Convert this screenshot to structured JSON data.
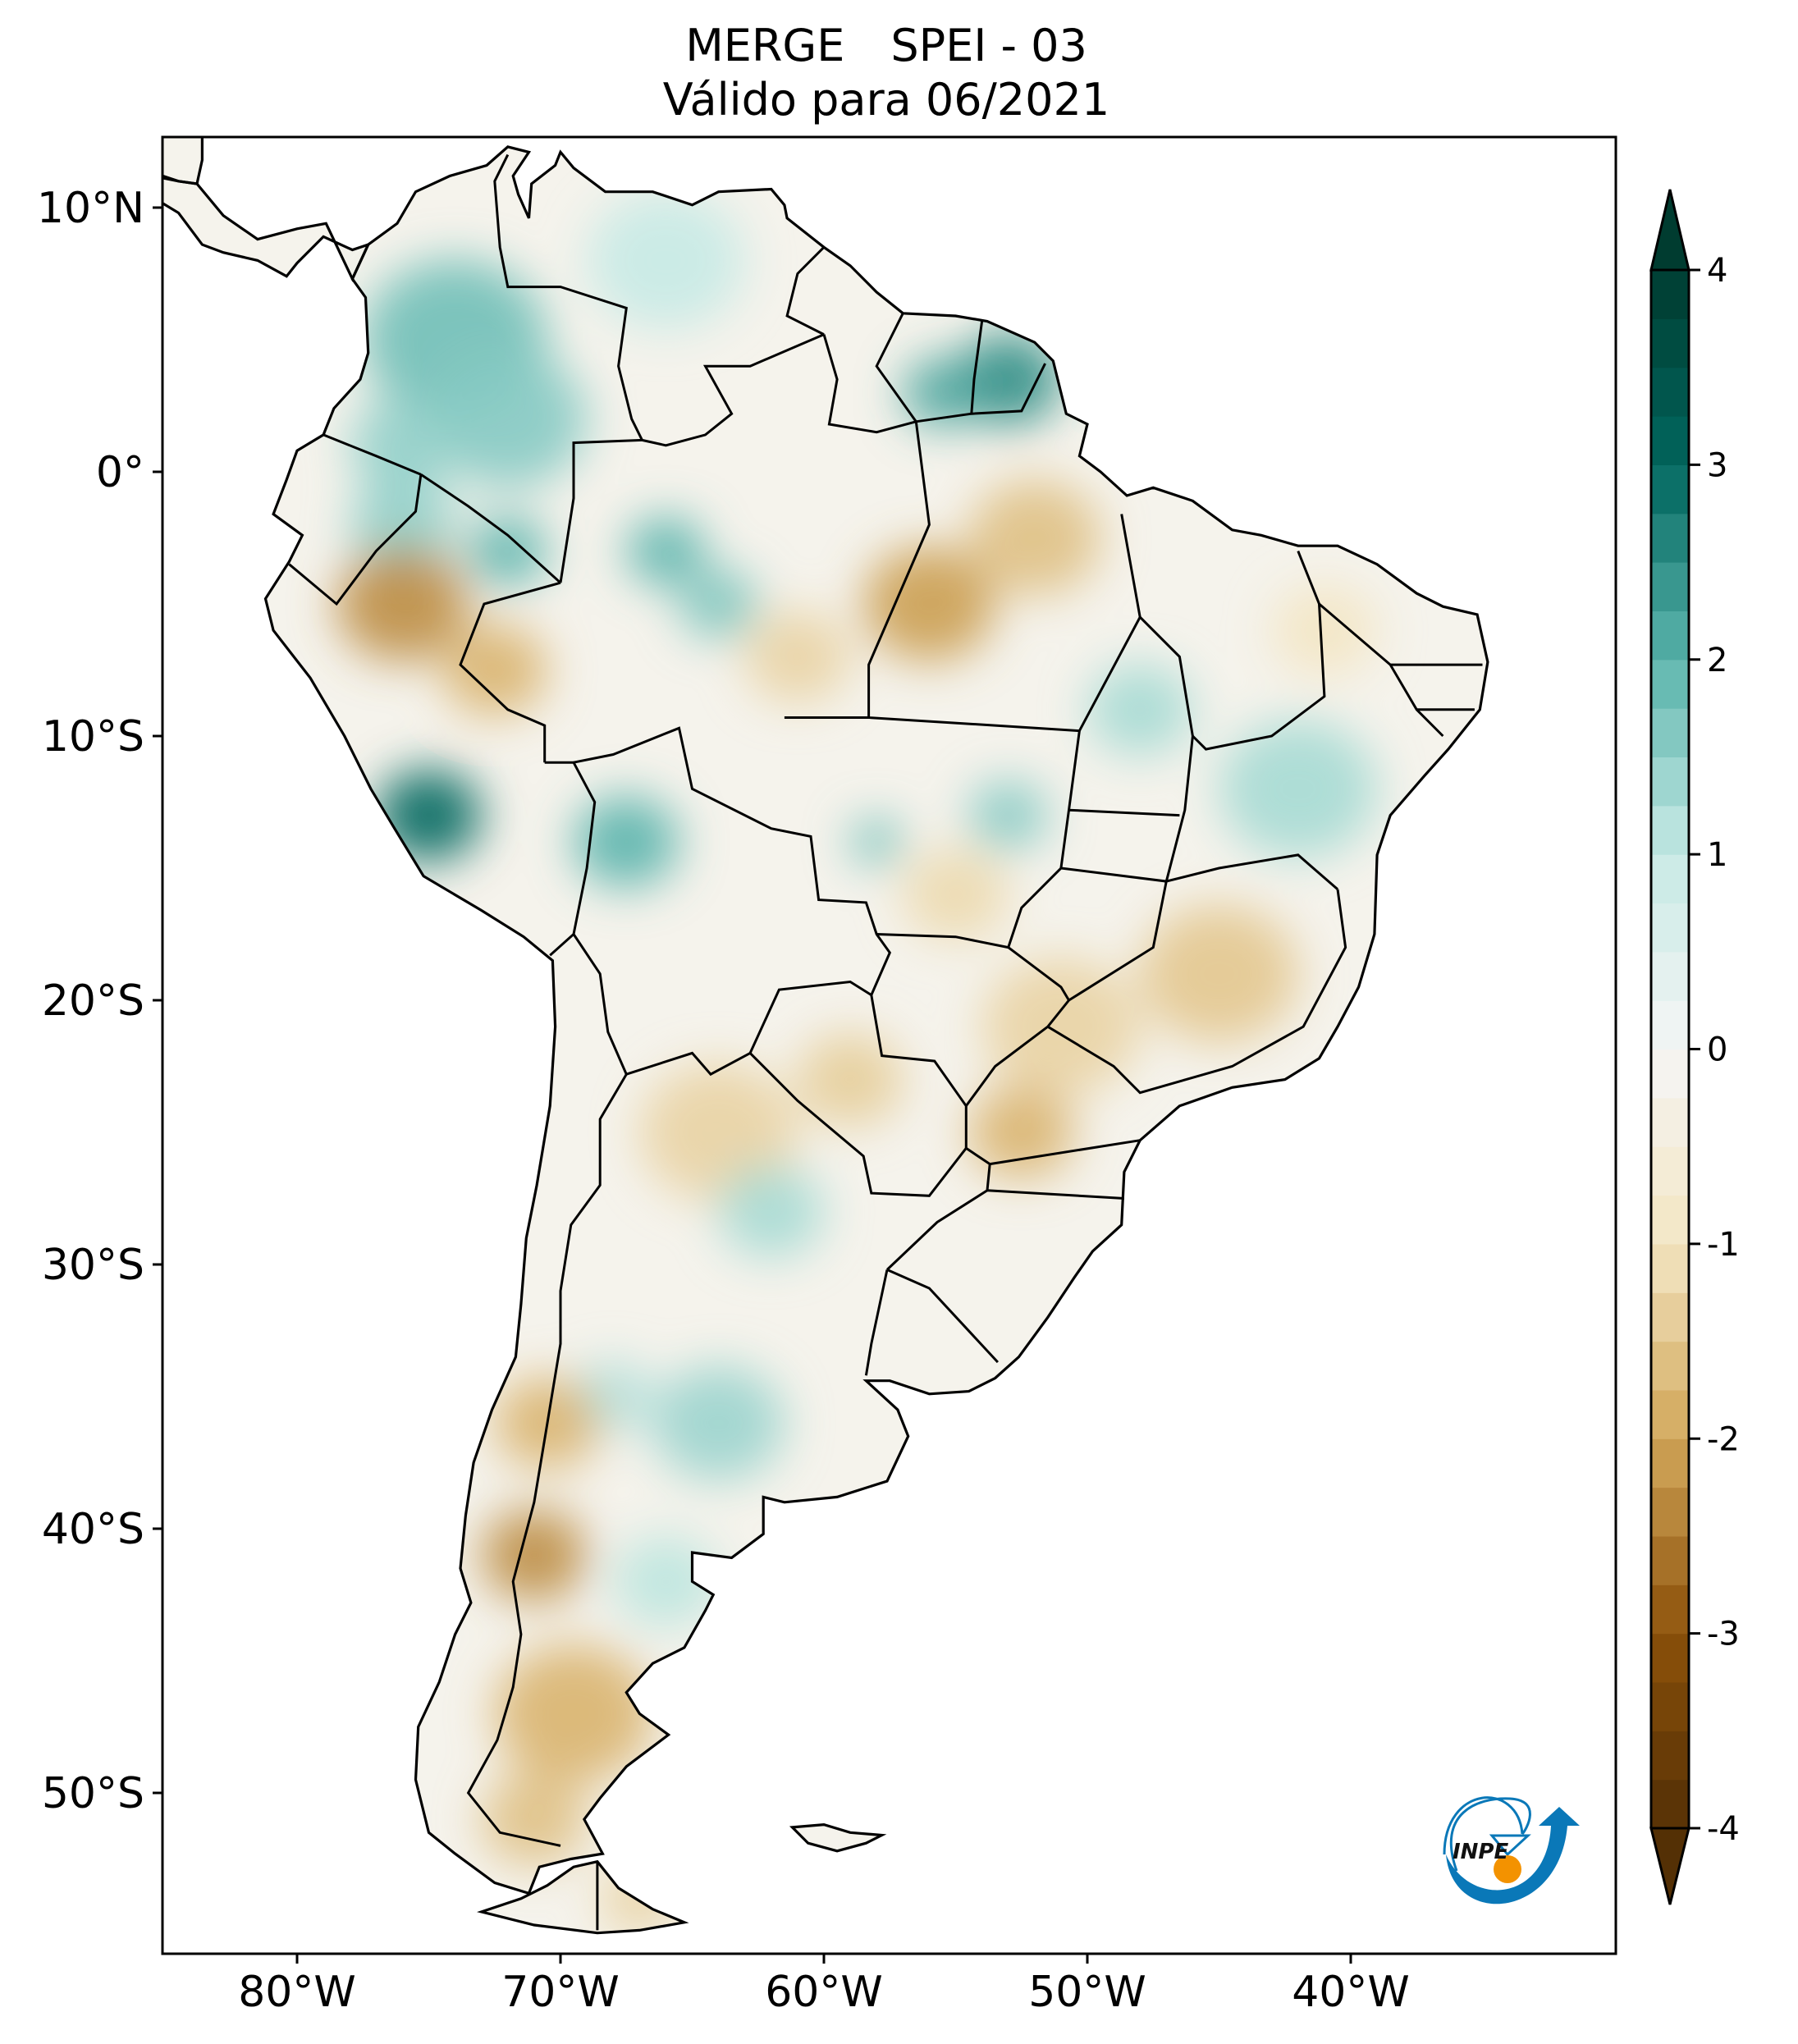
{
  "title": {
    "product": "MERGE",
    "index": "SPEI - 03",
    "subtitle": "Válido para 06/2021"
  },
  "axes": {
    "lon_ticks": [
      {
        "value": -80,
        "label": "80°W"
      },
      {
        "value": -70,
        "label": "70°W"
      },
      {
        "value": -60,
        "label": "60°W"
      },
      {
        "value": -50,
        "label": "50°W"
      },
      {
        "value": -40,
        "label": "40°W"
      }
    ],
    "lat_ticks": [
      {
        "value": 10,
        "label": "10°N"
      },
      {
        "value": 0,
        "label": "0°"
      },
      {
        "value": -10,
        "label": "10°S"
      },
      {
        "value": -20,
        "label": "20°S"
      },
      {
        "value": -30,
        "label": "30°S"
      },
      {
        "value": -40,
        "label": "40°S"
      },
      {
        "value": -50,
        "label": "50°S"
      }
    ],
    "lon_range": [
      -85.1,
      -29.9
    ],
    "lat_range": [
      -56.1,
      12.7
    ]
  },
  "colorbar": {
    "range": [
      -4,
      4
    ],
    "extend": "both",
    "colormap": "BrBG",
    "ticks": [
      {
        "value": 4,
        "label": "4"
      },
      {
        "value": 3,
        "label": "3"
      },
      {
        "value": 2,
        "label": "2"
      },
      {
        "value": 1,
        "label": "1"
      },
      {
        "value": 0,
        "label": "0"
      },
      {
        "value": -1,
        "label": "-1"
      },
      {
        "value": -2,
        "label": "-2"
      },
      {
        "value": -3,
        "label": "-3"
      },
      {
        "value": -4,
        "label": "-4"
      }
    ],
    "stops": [
      {
        "v": -4,
        "c": "#543005"
      },
      {
        "v": -3,
        "c": "#8c510a"
      },
      {
        "v": -2,
        "c": "#d2a75a"
      },
      {
        "v": -1,
        "c": "#f3e6c3"
      },
      {
        "v": 0,
        "c": "#f5f5f5"
      },
      {
        "v": 1,
        "c": "#c7eae5"
      },
      {
        "v": 2,
        "c": "#5ab4ac"
      },
      {
        "v": 3,
        "c": "#01665e"
      },
      {
        "v": 4,
        "c": "#003c30"
      }
    ]
  },
  "logo": {
    "text": "INPE",
    "blue": "#0a78b8",
    "orange": "#f39200"
  },
  "anomalies": [
    {
      "lon": -74,
      "lat": 5,
      "spei": 1.8,
      "r": 3.5
    },
    {
      "lon": -72,
      "lat": 2,
      "spei": 1.6,
      "r": 3
    },
    {
      "lon": -76,
      "lat": 1,
      "spei": 1.5,
      "r": 2
    },
    {
      "lon": -66,
      "lat": 8,
      "spei": 1.0,
      "r": 3
    },
    {
      "lon": -53,
      "lat": 3.5,
      "spei": 2.5,
      "r": 2
    },
    {
      "lon": -55.5,
      "lat": 3,
      "spei": 2.2,
      "r": 1.5
    },
    {
      "lon": -76,
      "lat": -2,
      "spei": 1.5,
      "r": 2
    },
    {
      "lon": -72,
      "lat": -3,
      "spei": 2.0,
      "r": 1.5
    },
    {
      "lon": -76,
      "lat": -5,
      "spei": -2.3,
      "r": 2.5
    },
    {
      "lon": -72.5,
      "lat": -7.5,
      "spei": -1.8,
      "r": 2
    },
    {
      "lon": -75,
      "lat": -13,
      "spei": 3.0,
      "r": 2
    },
    {
      "lon": -67.5,
      "lat": -14,
      "spei": 2.0,
      "r": 2
    },
    {
      "lon": -66,
      "lat": -3,
      "spei": 2.0,
      "r": 1.5
    },
    {
      "lon": -64,
      "lat": -5,
      "spei": 1.7,
      "r": 1.5
    },
    {
      "lon": -56,
      "lat": -5,
      "spei": -2.1,
      "r": 2.5
    },
    {
      "lon": -52,
      "lat": -2.5,
      "spei": -1.6,
      "r": 2.5
    },
    {
      "lon": -61,
      "lat": -7,
      "spei": -1.3,
      "r": 2
    },
    {
      "lon": -53,
      "lat": -13,
      "spei": 1.6,
      "r": 1.5
    },
    {
      "lon": -58,
      "lat": -14,
      "spei": 1.8,
      "r": 1
    },
    {
      "lon": -42,
      "lat": -12,
      "spei": 1.3,
      "r": 3
    },
    {
      "lon": -48,
      "lat": -9,
      "spei": 1.3,
      "r": 2
    },
    {
      "lon": -41,
      "lat": -6,
      "spei": -1.0,
      "r": 2
    },
    {
      "lon": -45,
      "lat": -19,
      "spei": -1.5,
      "r": 3
    },
    {
      "lon": -51,
      "lat": -21,
      "spei": -1.3,
      "r": 3
    },
    {
      "lon": -52.5,
      "lat": -25,
      "spei": -1.8,
      "r": 2
    },
    {
      "lon": -59,
      "lat": -23,
      "spei": -1.4,
      "r": 2
    },
    {
      "lon": -64,
      "lat": -25,
      "spei": -1.3,
      "r": 3
    },
    {
      "lon": -55,
      "lat": -16,
      "spei": -1.2,
      "r": 2
    },
    {
      "lon": -62,
      "lat": -28,
      "spei": 1.3,
      "r": 2
    },
    {
      "lon": -64,
      "lat": -36,
      "spei": 1.4,
      "r": 2.5
    },
    {
      "lon": -68,
      "lat": -35,
      "spei": 1.2,
      "r": 1.5
    },
    {
      "lon": -66,
      "lat": -42,
      "spei": 1.1,
      "r": 2
    },
    {
      "lon": -70.5,
      "lat": -36,
      "spei": -1.8,
      "r": 2
    },
    {
      "lon": -71,
      "lat": -41,
      "spei": -2.3,
      "r": 2
    },
    {
      "lon": -69.5,
      "lat": -47,
      "spei": -1.8,
      "r": 3
    },
    {
      "lon": -71,
      "lat": -51,
      "spei": -1.6,
      "r": 2
    },
    {
      "lon": -67,
      "lat": -54,
      "spei": -1.3,
      "r": 1.5
    }
  ]
}
